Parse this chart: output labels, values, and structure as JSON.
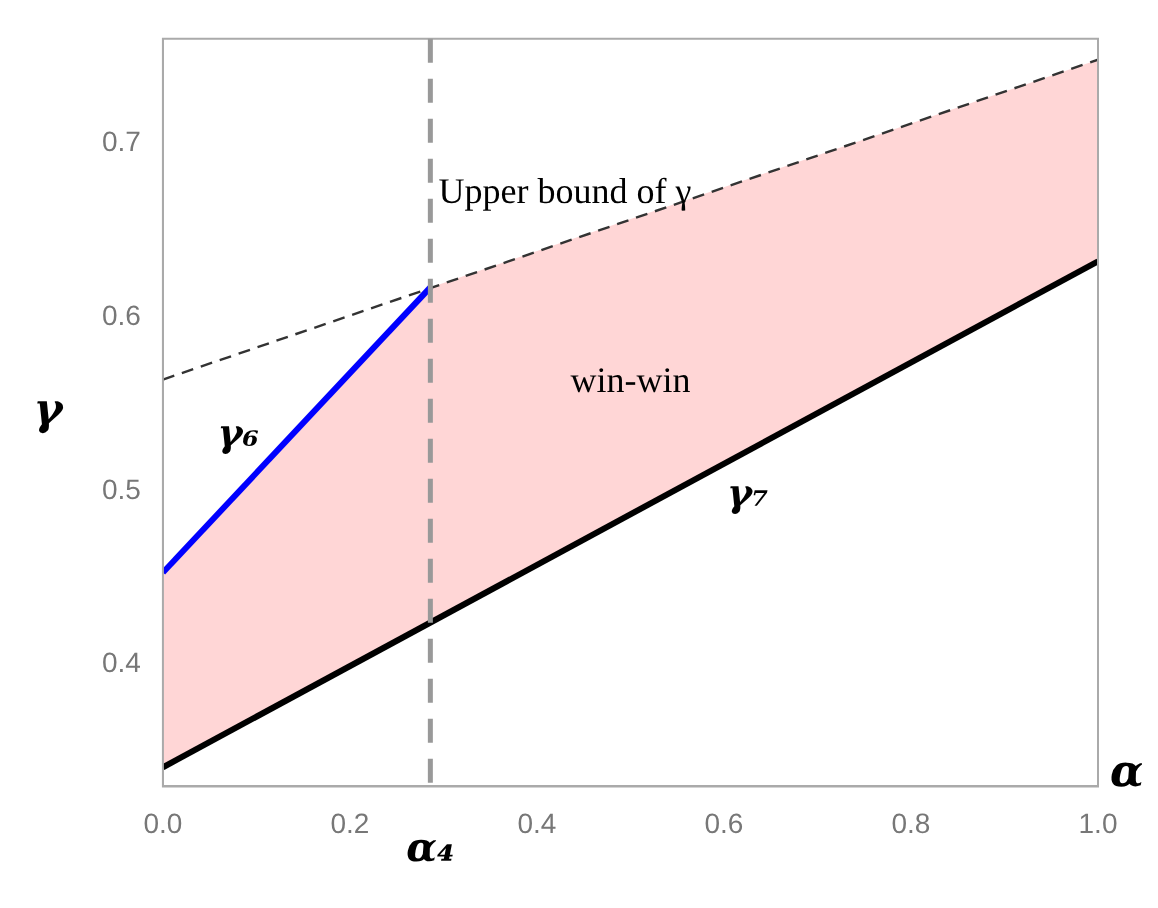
{
  "chart_data": {
    "type": "line",
    "xlabel": "α",
    "ylabel": "γ",
    "xlim": [
      0,
      1
    ],
    "ylim": [
      0.33,
      0.76
    ],
    "xticks": [
      {
        "value": 0,
        "label": "0.0"
      },
      {
        "value": 0.2,
        "label": "0.2"
      },
      {
        "value": 0.4,
        "label": "0.4"
      },
      {
        "value": 0.6,
        "label": "0.6"
      },
      {
        "value": 0.8,
        "label": "0.8"
      },
      {
        "value": 1,
        "label": "1.0"
      }
    ],
    "yticks": [
      0.4,
      0.5,
      0.6,
      0.7
    ],
    "grid": false,
    "legend": false,
    "marker": "none",
    "series": [
      {
        "type": "area",
        "color": "#ffd6d6",
        "x": [
          0,
          0.286,
          1
        ],
        "values": [
          0.453,
          0.617,
          0.748
        ]
      },
      {
        "name": "γ₆",
        "color": "#0000ff",
        "x": [
          0,
          0.286
        ],
        "values": [
          0.453,
          0.617
        ]
      },
      {
        "name": "γ₇",
        "color": "#000000",
        "x": [
          0,
          1
        ],
        "values": [
          0.341,
          0.632
        ]
      },
      {
        "name": "Upper bound of γ",
        "color": "#333333",
        "line_style": "dashed",
        "x": [
          0,
          1
        ],
        "values": [
          0.564,
          0.748
        ]
      }
    ],
    "ref_lines": [
      {
        "axis": "x",
        "value": 0.286,
        "label": "α₄",
        "color": "#999999",
        "line_style": "dashed"
      }
    ],
    "annotations": [
      "win-win"
    ]
  }
}
